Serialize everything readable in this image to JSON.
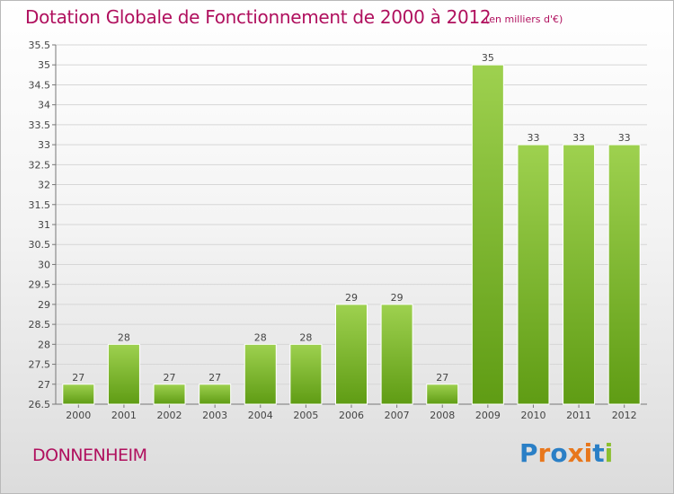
{
  "title": "Dotation Globale de Fonctionnement de 2000 à 2012",
  "unit": "(en milliers d'€)",
  "city": "DONNENHEIM",
  "logo": "Proxiti",
  "colors": {
    "title": "#b0105e",
    "bar_light": "#9ed14f",
    "bar_dark": "#5f9c14",
    "logo_letters": [
      "#2a7fc6",
      "#e8771c",
      "#2a7fc6",
      "#e8771c",
      "#e8771c",
      "#2a7fc6",
      "#8bbf2e"
    ]
  },
  "chart_data": {
    "type": "bar",
    "categories": [
      "2000",
      "2001",
      "2002",
      "2003",
      "2004",
      "2005",
      "2006",
      "2007",
      "2008",
      "2009",
      "2010",
      "2011",
      "2012"
    ],
    "values": [
      27,
      28,
      27,
      27,
      28,
      28,
      29,
      29,
      27,
      35,
      33,
      33,
      33
    ],
    "data_labels": [
      "27",
      "28",
      "27",
      "27",
      "28",
      "28",
      "29",
      "29",
      "27",
      "35",
      "33",
      "33",
      "33"
    ],
    "yticks": [
      "26.5",
      "27",
      "27.5",
      "28",
      "28.5",
      "29",
      "29.5",
      "30",
      "30.5",
      "31",
      "31.5",
      "32",
      "32.5",
      "33",
      "33.5",
      "34",
      "34.5",
      "35",
      "35.5"
    ],
    "ylim": [
      26.5,
      35.5
    ],
    "grid": true,
    "legend": "none"
  }
}
